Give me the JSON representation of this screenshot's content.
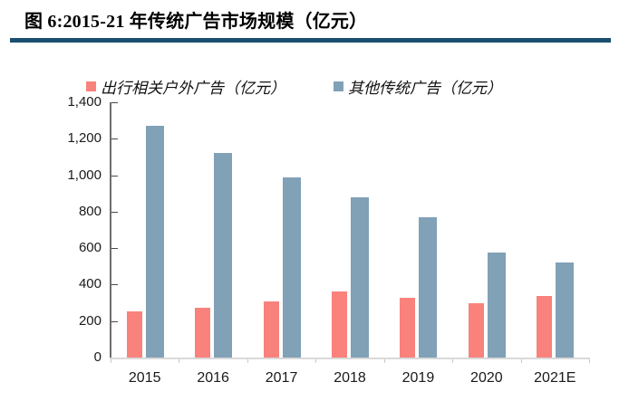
{
  "header": {
    "title": "图 6:2015-21 年传统广告市场规模（亿元）"
  },
  "colors": {
    "travel_bar": "#F9827C",
    "other_bar": "#80A1B6",
    "title_rule": "#1A4F71",
    "y_axis_line": "#6E6E6E",
    "x_axis_line": "#D9D9D9"
  },
  "chart_data": {
    "type": "bar",
    "title": "图 6:2015-21 年传统广告市场规模（亿元）",
    "categories": [
      "2015",
      "2016",
      "2017",
      "2018",
      "2019",
      "2020",
      "2021E"
    ],
    "series": [
      {
        "name": "出行相关户外广告（亿元）",
        "color": "#F9827C",
        "values": [
          255,
          275,
          310,
          360,
          330,
          300,
          340
        ]
      },
      {
        "name": "其他传统广告（亿元）",
        "color": "#80A1B6",
        "values": [
          1270,
          1120,
          990,
          880,
          770,
          575,
          520
        ]
      }
    ],
    "xlabel": "",
    "ylabel": "",
    "ylim": [
      0,
      1400
    ],
    "ytick_step": 200,
    "ytick_labels": [
      "0",
      "200",
      "400",
      "600",
      "800",
      "1,000",
      "1,200",
      "1,400"
    ],
    "grid": false,
    "legend_position": "top-left"
  }
}
